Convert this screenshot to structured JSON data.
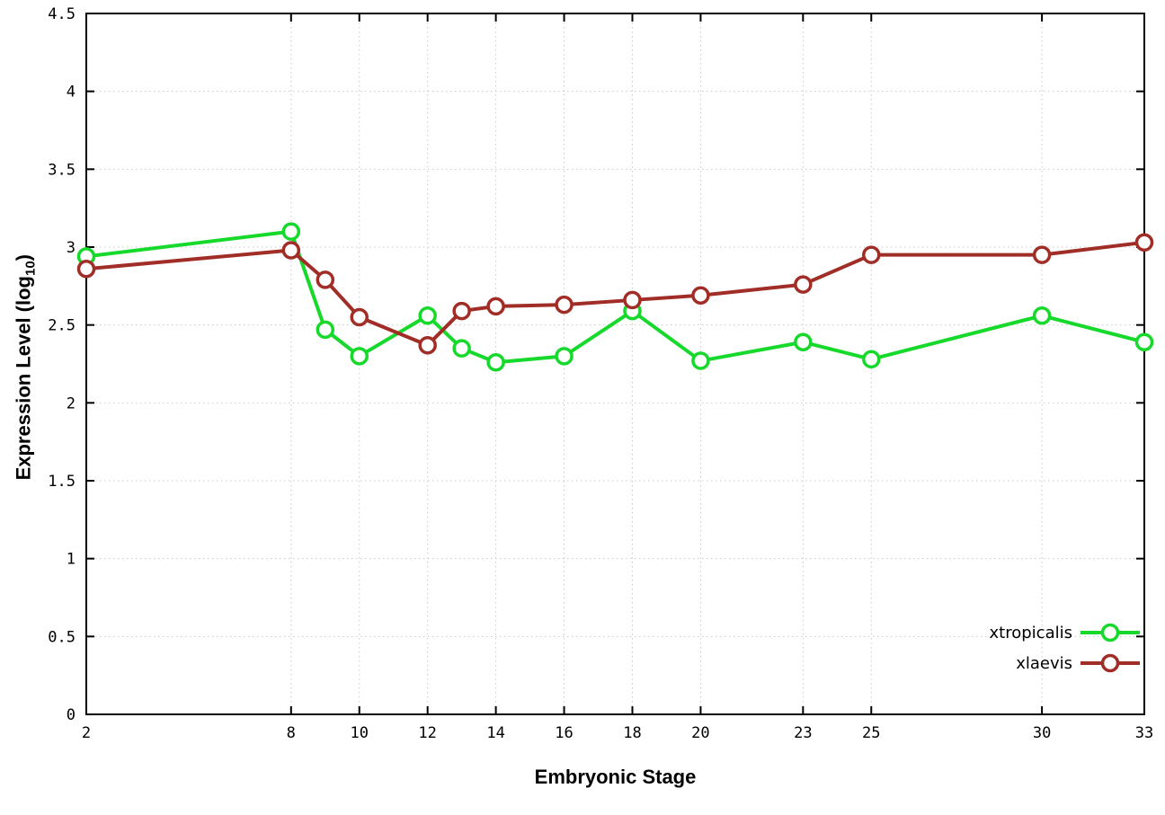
{
  "chart_data": {
    "type": "line",
    "title": "",
    "xlabel": "Embryonic Stage",
    "ylabel": "Expression Level (log10)",
    "ylabel_parts": {
      "prefix": "Expression Level (log",
      "sub": "10",
      "suffix": ")"
    },
    "x": [
      2,
      8,
      9,
      10,
      12,
      13,
      14,
      16,
      18,
      20,
      23,
      25,
      30,
      33
    ],
    "series": [
      {
        "name": "xtropicalis",
        "color": "#17d92b",
        "values": [
          2.94,
          3.1,
          2.47,
          2.3,
          2.56,
          2.35,
          2.26,
          2.3,
          2.59,
          2.27,
          2.39,
          2.28,
          2.56,
          2.39
        ]
      },
      {
        "name": "xlaevis",
        "color": "#a12d27",
        "values": [
          2.86,
          2.98,
          2.79,
          2.55,
          2.37,
          2.59,
          2.62,
          2.63,
          2.66,
          2.69,
          2.76,
          2.95,
          2.95,
          3.03
        ]
      }
    ],
    "xticks": [
      2,
      8,
      10,
      12,
      14,
      16,
      18,
      20,
      23,
      25,
      30,
      33
    ],
    "yticks": [
      0,
      0.5,
      1,
      1.5,
      2,
      2.5,
      3,
      3.5,
      4,
      4.5
    ],
    "xlim": [
      2,
      33
    ],
    "ylim": [
      0,
      4.5
    ],
    "grid": true,
    "grid_color": "#c9c9c9",
    "axis_color": "#000000",
    "legend_position": "inside bottom-right"
  }
}
